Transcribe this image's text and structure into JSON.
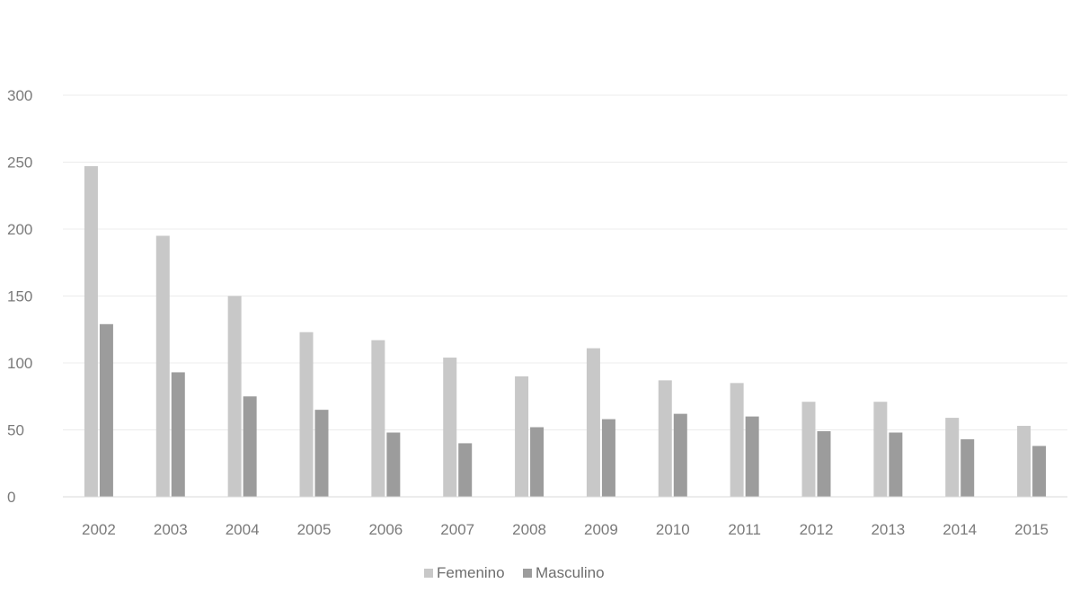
{
  "chart_data": {
    "type": "bar",
    "categories": [
      "2002",
      "2003",
      "2004",
      "2005",
      "2006",
      "2007",
      "2008",
      "2009",
      "2010",
      "2011",
      "2012",
      "2013",
      "2014",
      "2015"
    ],
    "series": [
      {
        "name": "Femenino",
        "color": "#c8c8c8",
        "values": [
          247,
          195,
          150,
          123,
          117,
          104,
          90,
          111,
          87,
          85,
          71,
          71,
          59,
          53
        ]
      },
      {
        "name": "Masculino",
        "color": "#9c9c9c",
        "values": [
          129,
          93,
          75,
          65,
          48,
          40,
          52,
          58,
          62,
          60,
          49,
          48,
          43,
          38
        ]
      }
    ],
    "ylim": [
      0,
      300
    ],
    "yticks": [
      "0",
      "50",
      "100",
      "150",
      "200",
      "250",
      "300"
    ],
    "grid": true,
    "legend_position": "bottom"
  }
}
